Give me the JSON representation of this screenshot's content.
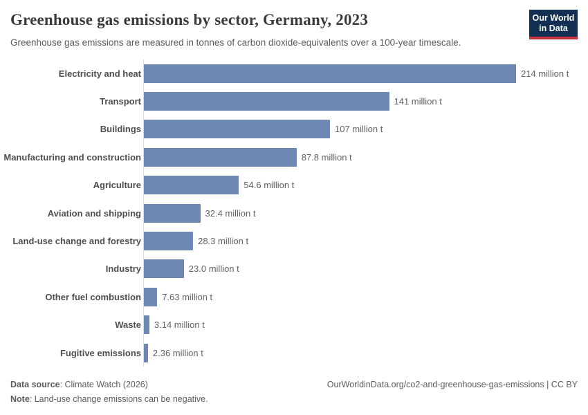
{
  "header": {
    "title": "Greenhouse gas emissions by sector, Germany, 2023",
    "subtitle": "Greenhouse gas emissions are measured in tonnes of carbon dioxide-equivalents over a 100-year timescale.",
    "logo": {
      "line1": "Our World",
      "line2": "in Data"
    }
  },
  "chart_data": {
    "type": "bar",
    "orientation": "horizontal",
    "title": "Greenhouse gas emissions by sector, Germany, 2023",
    "subtitle": "Greenhouse gas emissions are measured in tonnes of carbon dioxide-equivalents over a 100-year timescale.",
    "categories": [
      "Electricity and heat",
      "Transport",
      "Buildings",
      "Manufacturing and construction",
      "Agriculture",
      "Aviation and shipping",
      "Land-use change and forestry",
      "Industry",
      "Other fuel combustion",
      "Waste",
      "Fugitive emissions"
    ],
    "values": [
      214,
      141,
      107,
      87.8,
      54.6,
      32.4,
      28.3,
      23.0,
      7.63,
      3.14,
      2.36
    ],
    "value_labels": [
      "214 million t",
      "141 million t",
      "107 million t",
      "87.8 million t",
      "54.6 million t",
      "32.4 million t",
      "28.3 million t",
      "23.0 million t",
      "7.63 million t",
      "3.14 million t",
      "2.36 million t"
    ],
    "unit": "tonnes of carbon dioxide-equivalents",
    "xlim": [
      0,
      214
    ],
    "grid": false,
    "legend": "none"
  },
  "footer": {
    "source_label": "Data source",
    "source_rest": ": Climate Watch (2026)",
    "note_label": "Note",
    "note_rest": ": Land-use change emissions can be negative.",
    "url": "OurWorldinData.org/co2-and-greenhouse-gas-emissions | CC BY"
  },
  "colors": {
    "bar": "#6e88b4",
    "logo_bg": "#132f52",
    "logo_red": "#c5303e",
    "axis_line": "#dcdcdc",
    "title_text": "#3b3b3b",
    "subtitle_text": "#5b5b5b"
  }
}
